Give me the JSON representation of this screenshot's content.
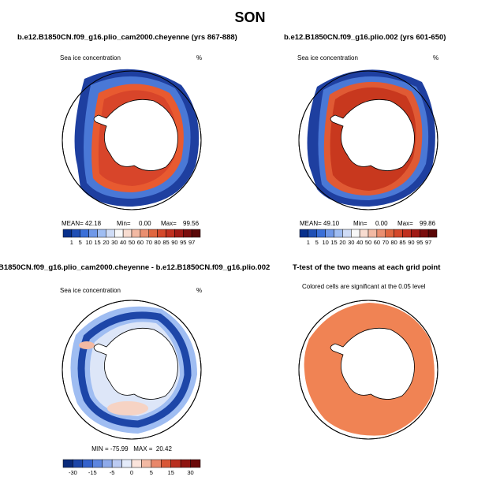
{
  "title": "SON",
  "panels": [
    {
      "title": "b.e12.B1850CN.f09_g16.plio_cam2000.cheyenne (yrs 867-888)",
      "variable": "Sea ice concentration",
      "units": "%",
      "stats": {
        "mean_label": "MEAN=",
        "mean": "42.18",
        "min_label": "Min=",
        "min": "0.00",
        "max_label": "Max=",
        "max": "99.56"
      },
      "colorbar_labels": [
        "1",
        "5",
        "10",
        "15",
        "20",
        "30",
        "40",
        "50",
        "60",
        "70",
        "80",
        "85",
        "90",
        "95",
        "97"
      ]
    },
    {
      "title": "b.e12.B1850CN.f09_g16.plio.002 (yrs 601-650)",
      "variable": "Sea ice concentration",
      "units": "%",
      "stats": {
        "mean_label": "MEAN=",
        "mean": "49.10",
        "min_label": "Min=",
        "min": "0.00",
        "max_label": "Max=",
        "max": "99.86"
      },
      "colorbar_labels": [
        "1",
        "5",
        "10",
        "15",
        "20",
        "30",
        "40",
        "50",
        "60",
        "70",
        "80",
        "85",
        "90",
        "95",
        "97"
      ]
    },
    {
      "title": "B1850CN.f09_g16.plio_cam2000.cheyenne - b.e12.B1850CN.f09_g16.plio.002",
      "variable": "Sea ice concentration",
      "units": "%",
      "stats_text": "MIN = -75.99   MAX =  20.42",
      "colorbar_labels": [
        "-30",
        "-15",
        "-5",
        "0",
        "5",
        "15",
        "30"
      ]
    },
    {
      "title": "T-test of the two means at each grid point",
      "subtitle": "Colored cells are significant at the 0.05 level"
    }
  ],
  "colors": {
    "seq": [
      "#08308c",
      "#1f4fb5",
      "#3a6fd8",
      "#6f98e8",
      "#9fbdf2",
      "#cfdcf6",
      "#f8f8f8",
      "#f8dcd0",
      "#f2b9a3",
      "#ea8f70",
      "#e0663f",
      "#d4482a",
      "#c0301f",
      "#a01a15",
      "#7a0c0c",
      "#5a0606"
    ],
    "div": [
      "#0a2a7a",
      "#1d46a8",
      "#3562cc",
      "#5e86df",
      "#8eaaea",
      "#bccbf2",
      "#e4ebfa",
      "#fbe4dc",
      "#f3b9a3",
      "#e8876a",
      "#d85737",
      "#b93020",
      "#8e1410",
      "#6a0808"
    ],
    "ttest": "#f08354",
    "land": "#ffffff"
  }
}
